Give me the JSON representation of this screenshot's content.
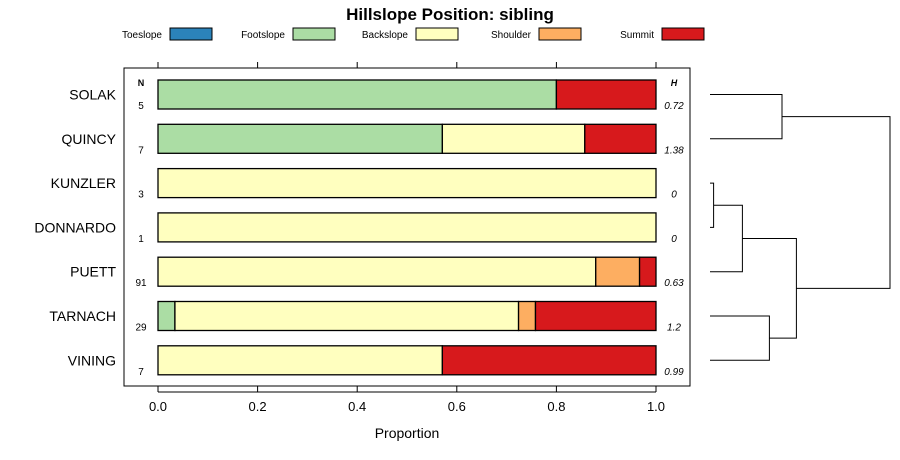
{
  "chart_data": {
    "type": "bar",
    "subtype": "stacked-horizontal-proportion",
    "title": "Hillslope Position: sibling",
    "xlabel": "Proportion",
    "ylabel": "",
    "xlim": [
      0,
      1
    ],
    "xticks": [
      "0.0",
      "0.2",
      "0.4",
      "0.6",
      "0.8",
      "1.0"
    ],
    "legend": {
      "position": "top",
      "entries": [
        {
          "name": "Toeslope",
          "color": "#2b83ba"
        },
        {
          "name": "Footslope",
          "color": "#abdda4"
        },
        {
          "name": "Backslope",
          "color": "#ffffbf"
        },
        {
          "name": "Shoulder",
          "color": "#fdae61"
        },
        {
          "name": "Summit",
          "color": "#d7191c"
        }
      ]
    },
    "n_header": "N",
    "h_header": "H",
    "categories": [
      "SOLAK",
      "QUINCY",
      "KUNZLER",
      "DONNARDO",
      "PUETT",
      "TARNACH",
      "VINING"
    ],
    "n": [
      "5",
      "7",
      "3",
      "1",
      "91",
      "29",
      "7"
    ],
    "h": [
      "0.72",
      "1.38",
      "0",
      "0",
      "0.63",
      "1.2",
      "0.99"
    ],
    "series": [
      {
        "name": "Toeslope",
        "values": [
          0,
          0,
          0,
          0,
          0,
          0,
          0
        ]
      },
      {
        "name": "Footslope",
        "values": [
          0.8,
          0.571,
          0,
          0,
          0,
          0.034,
          0
        ]
      },
      {
        "name": "Backslope",
        "values": [
          0,
          0.286,
          1.0,
          1.0,
          0.879,
          0.69,
          0.571
        ]
      },
      {
        "name": "Shoulder",
        "values": [
          0,
          0,
          0,
          0,
          0.088,
          0.034,
          0
        ]
      },
      {
        "name": "Summit",
        "values": [
          0.2,
          0.143,
          0,
          0,
          0.033,
          0.242,
          0.429
        ]
      }
    ],
    "dendrogram": {
      "merges": [
        {
          "left": "KUNZLER",
          "right": "DONNARDO",
          "height": 0.02
        },
        {
          "left": "merge:0",
          "right": "PUETT",
          "height": 0.18
        },
        {
          "left": "SOLAK",
          "right": "QUINCY",
          "height": 0.4
        },
        {
          "left": "TARNACH",
          "right": "VINING",
          "height": 0.33
        },
        {
          "left": "merge:1",
          "right": "merge:3",
          "height": 0.48
        },
        {
          "left": "merge:2",
          "right": "merge:4",
          "height": 1.0
        }
      ]
    }
  }
}
